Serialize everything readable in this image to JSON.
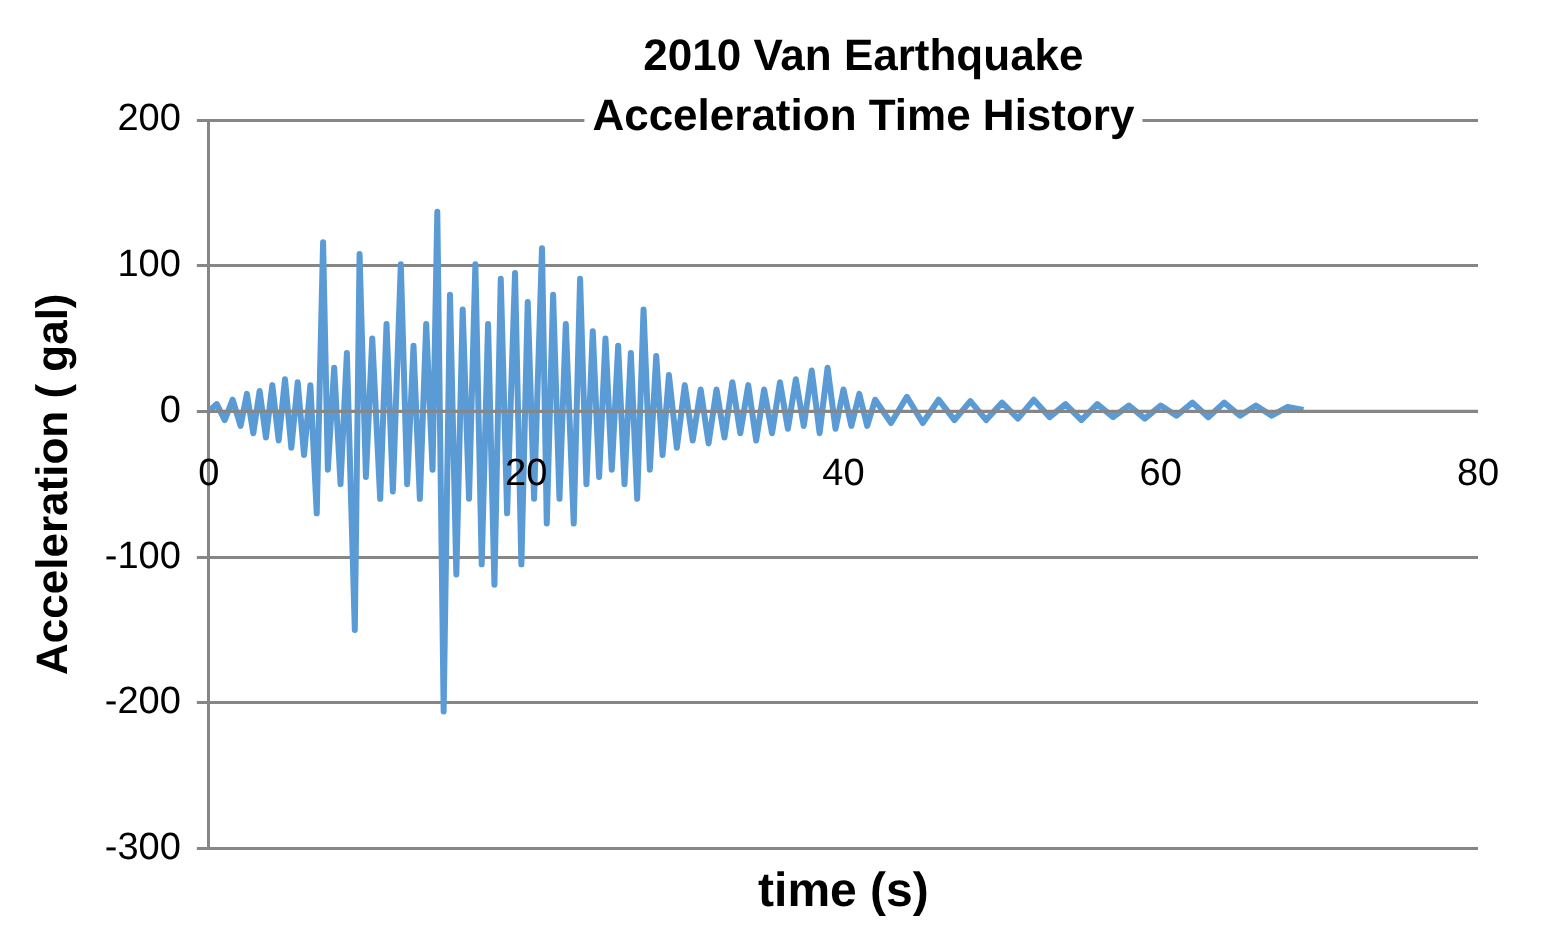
{
  "chart_data": {
    "type": "line",
    "title": "2010 Van Earthquake\nAcceleration Time History",
    "xlabel": "time (s)",
    "ylabel": "Acceleration ( gal)",
    "xlim": [
      0,
      80
    ],
    "xticks": [
      0,
      20,
      40,
      60,
      80
    ],
    "ylim": [
      -300,
      200
    ],
    "yticks": [
      -300,
      -200,
      -100,
      0,
      100,
      200
    ],
    "grid": "y",
    "legend": false,
    "marker": "none",
    "series": [
      {
        "color": "#5b9bd5",
        "x": [
          0,
          0.5,
          1,
          1.5,
          2,
          2.4,
          2.8,
          3.2,
          3.6,
          4,
          4.4,
          4.8,
          5.2,
          5.6,
          6,
          6.4,
          6.8,
          7.2,
          7.5,
          7.9,
          8.3,
          8.7,
          9.2,
          9.5,
          9.9,
          10.3,
          10.8,
          11.2,
          11.6,
          12.1,
          12.5,
          12.9,
          13.3,
          13.7,
          14.1,
          14.4,
          14.8,
          15.2,
          15.6,
          16,
          16.4,
          16.8,
          17.2,
          17.6,
          18,
          18.4,
          18.8,
          19.3,
          19.7,
          20.1,
          20.5,
          21,
          21.3,
          21.7,
          22.1,
          22.5,
          23,
          23.4,
          23.8,
          24.2,
          24.6,
          25,
          25.4,
          25.8,
          26.2,
          26.6,
          27,
          27.4,
          27.8,
          28.2,
          28.6,
          29,
          29.5,
          30,
          30.5,
          31,
          31.5,
          32,
          32.5,
          33,
          33.5,
          34,
          34.5,
          35,
          35.5,
          36,
          36.5,
          37,
          37.5,
          38,
          38.5,
          39,
          39.5,
          40,
          40.5,
          41,
          41.5,
          42,
          43,
          44,
          45,
          46,
          47,
          48,
          49,
          50,
          51,
          52,
          53,
          54,
          55,
          56,
          57,
          58,
          59,
          60,
          61,
          62,
          63,
          64,
          65,
          66,
          67,
          68,
          69
        ],
        "values": [
          0,
          5,
          -6,
          8,
          -10,
          12,
          -15,
          14,
          -18,
          18,
          -20,
          22,
          -25,
          20,
          -30,
          18,
          -70,
          116,
          -40,
          30,
          -50,
          40,
          -150,
          108,
          -45,
          50,
          -60,
          60,
          -55,
          101,
          -50,
          45,
          -60,
          60,
          -40,
          137,
          -206,
          80,
          -112,
          70,
          -60,
          101,
          -105,
          60,
          -119,
          91,
          -70,
          95,
          -105,
          75,
          -60,
          112,
          -77,
          80,
          -60,
          60,
          -77,
          91,
          -50,
          55,
          -45,
          50,
          -40,
          45,
          -50,
          40,
          -60,
          70,
          -40,
          38,
          -30,
          25,
          -25,
          18,
          -20,
          15,
          -22,
          15,
          -18,
          20,
          -15,
          18,
          -20,
          15,
          -15,
          20,
          -12,
          22,
          -10,
          28,
          -15,
          30,
          -12,
          15,
          -10,
          12,
          -10,
          8,
          -8,
          10,
          -8,
          8,
          -6,
          7,
          -6,
          6,
          -5,
          8,
          -4,
          5,
          -6,
          5,
          -4,
          4,
          -5,
          4,
          -3,
          6,
          -4,
          6,
          -3,
          4,
          -3,
          3,
          1
        ]
      }
    ]
  }
}
